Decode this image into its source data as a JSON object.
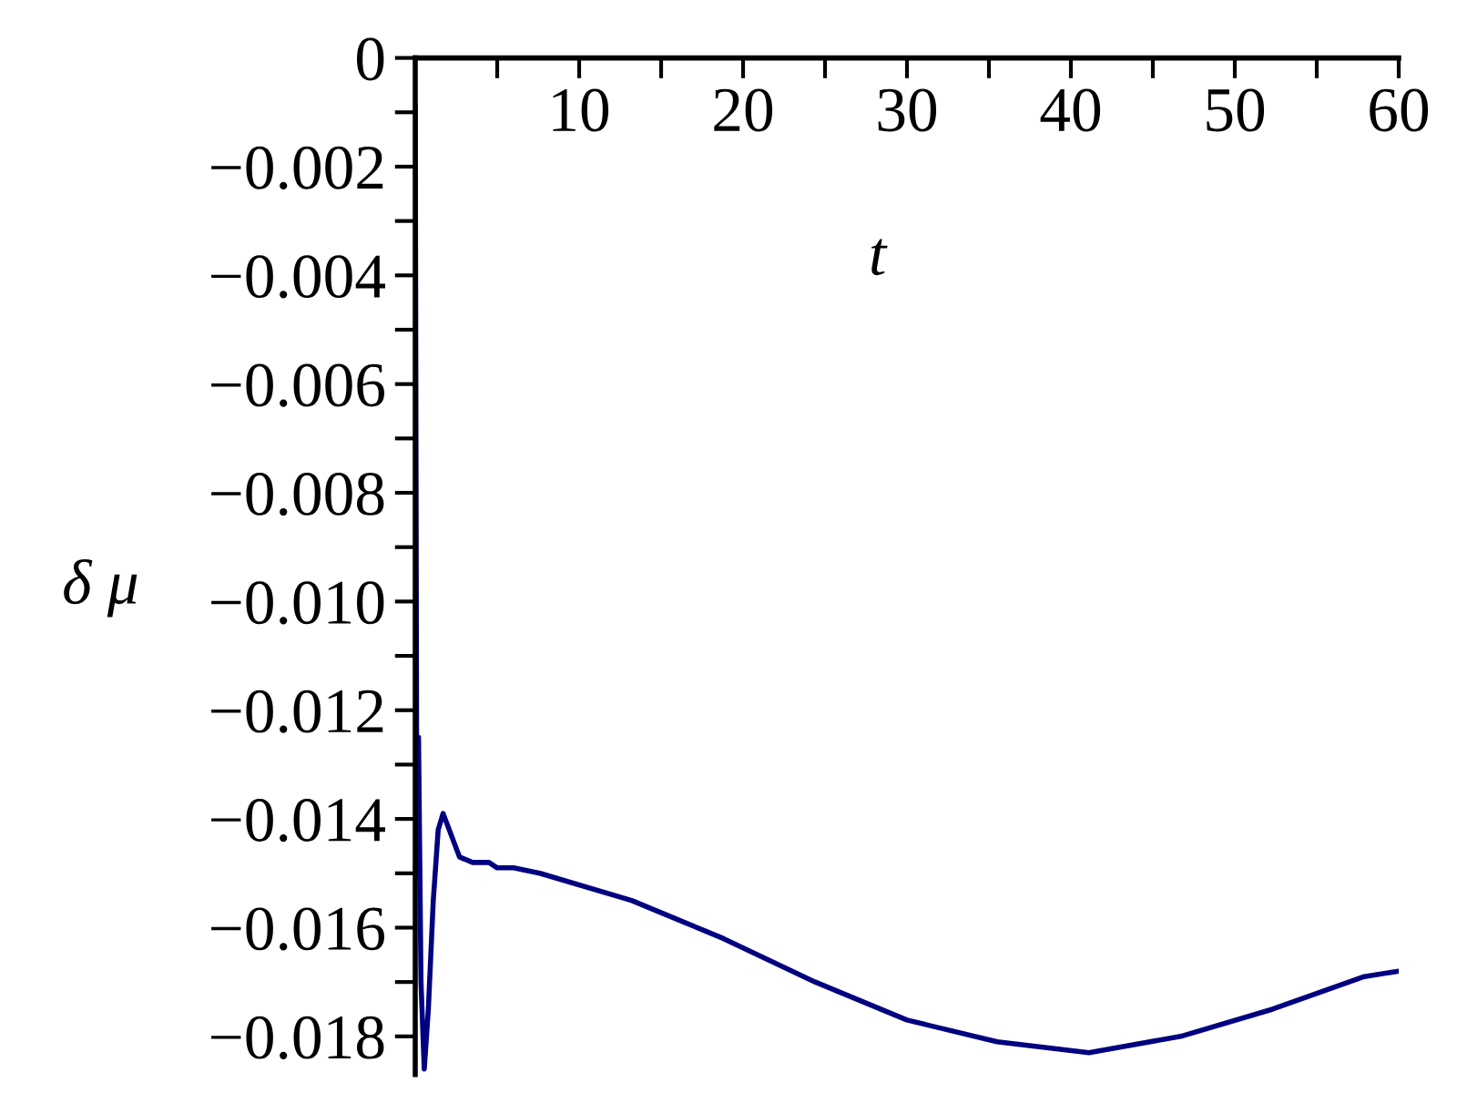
{
  "chart_data": {
    "type": "line",
    "xlabel": "t",
    "ylabel": "δ μ",
    "x": [
      0,
      0.1,
      0.2,
      0.35,
      0.55,
      0.8,
      1.1,
      1.4,
      1.7,
      2.2,
      2.7,
      3.5,
      4.5,
      5,
      6,
      7.6,
      13.2,
      18.8,
      24.4,
      30.0,
      35.5,
      41.1,
      46.7,
      52.3,
      57.9,
      60
    ],
    "series": [
      {
        "color": "#000080",
        "values": [
          -0.0009,
          -0.015,
          -0.0125,
          -0.017,
          -0.0186,
          -0.0175,
          -0.0155,
          -0.0142,
          -0.0139,
          -0.0143,
          -0.0147,
          -0.0148,
          -0.0148,
          -0.0149,
          -0.0149,
          -0.015,
          -0.0155,
          -0.0162,
          -0.017,
          -0.0177,
          -0.0181,
          -0.0183,
          -0.018,
          -0.0175,
          -0.0169,
          -0.0168
        ]
      }
    ],
    "xlim": [
      0,
      60
    ],
    "ylim": [
      -0.0187,
      0
    ],
    "xticks": [
      {
        "value": 5,
        "label": null
      },
      10,
      {
        "value": 15,
        "label": null
      },
      20,
      {
        "value": 25,
        "label": null
      },
      30,
      {
        "value": 35,
        "label": null
      },
      40,
      {
        "value": 45,
        "label": null
      },
      50,
      {
        "value": 55,
        "label": null
      },
      60
    ],
    "yticks": [
      {
        "value": 0,
        "label": "0"
      },
      {
        "value": -0.001,
        "label": null
      },
      {
        "value": -0.002,
        "label": "−0.002"
      },
      {
        "value": -0.003,
        "label": null
      },
      {
        "value": -0.004,
        "label": "−0.004"
      },
      {
        "value": -0.005,
        "label": null
      },
      {
        "value": -0.006,
        "label": "−0.006"
      },
      {
        "value": -0.007,
        "label": null
      },
      {
        "value": -0.008,
        "label": "−0.008"
      },
      {
        "value": -0.009,
        "label": null
      },
      {
        "value": -0.01,
        "label": "−0.010"
      },
      {
        "value": -0.011,
        "label": null
      },
      {
        "value": -0.012,
        "label": "−0.012"
      },
      {
        "value": -0.013,
        "label": null
      },
      {
        "value": -0.014,
        "label": "−0.014"
      },
      {
        "value": -0.015,
        "label": null
      },
      {
        "value": -0.016,
        "label": "−0.016"
      },
      {
        "value": -0.017,
        "label": null
      },
      {
        "value": -0.018,
        "label": "−0.018"
      }
    ],
    "grid": false,
    "legend": false,
    "marker": "none",
    "line_style": "solid"
  }
}
